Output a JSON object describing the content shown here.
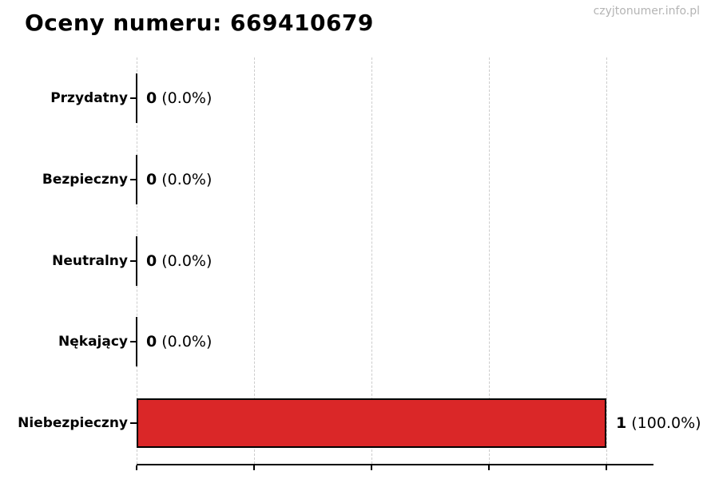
{
  "page": {
    "title": "Oceny numeru: 669410679",
    "watermark": "czyjtonumer.info.pl"
  },
  "chart_data": {
    "type": "bar",
    "orientation": "horizontal",
    "title": "Oceny numeru: 669410679",
    "categories": [
      "Przydatny",
      "Bezpieczny",
      "Neutralny",
      "Nękający",
      "Niebezpieczny"
    ],
    "values": [
      0,
      0,
      0,
      0,
      1
    ],
    "counts": [
      "0",
      "0",
      "0",
      "0",
      "1"
    ],
    "percent_labels": [
      "(0.0%)",
      "(0.0%)",
      "(0.0%)",
      "(0.0%)",
      "(100.0%)"
    ],
    "xlim": [
      0,
      1.1
    ],
    "gridline_values": [
      0,
      0.25,
      0.5,
      0.75,
      1.0
    ],
    "grid": true,
    "legend": false,
    "xlabel": "",
    "ylabel": "",
    "colors": {
      "bar_fill": "#da2728",
      "bar_edge": "#000000",
      "gridline": "#cccccc",
      "axis": "#000000",
      "title_text": "#000000",
      "watermark_text": "#b4b4b4"
    }
  }
}
